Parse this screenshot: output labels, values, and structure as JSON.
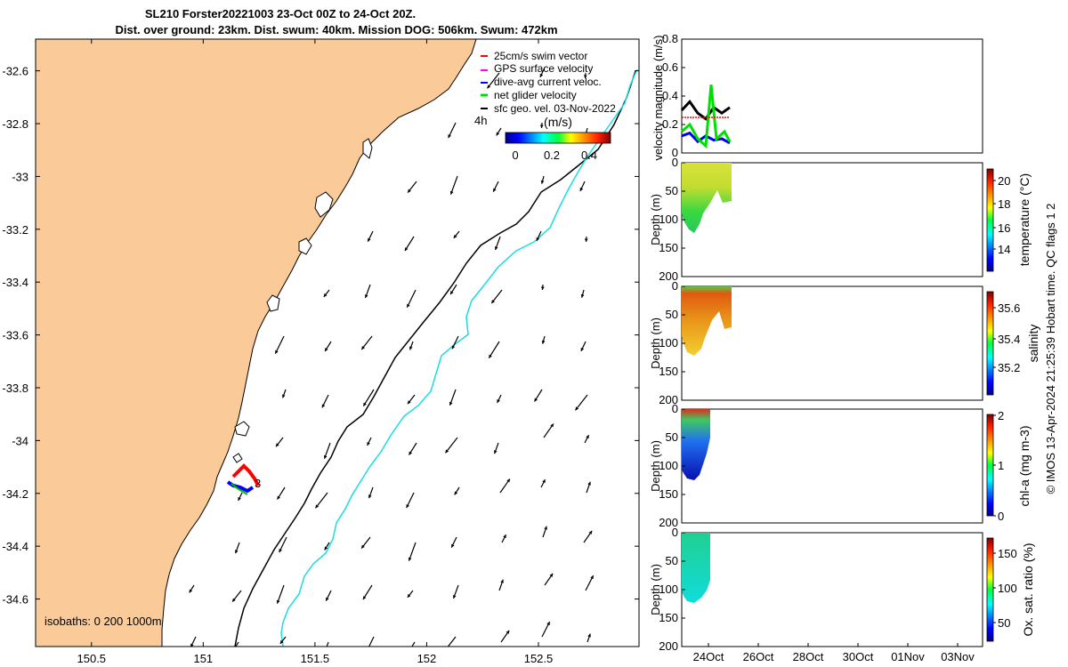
{
  "header": {
    "title_line1": "SL210 Forster20221003 23-Oct 00Z to 24-Oct 20Z.",
    "title_line2": "Dist. over ground: 23km. Dist. swum: 40km. Mission DOG: 506km. Swum: 472km"
  },
  "colors": {
    "land": "#facb98",
    "ocean": "#ffffff",
    "isobath_200": "#000000",
    "isobath_1000": "#19dede",
    "swim_vector": "#ff0000",
    "gps_velocity": "#ff00ff",
    "dive_avg_current": "#0000ff",
    "net_glider_velocity": "#00e000",
    "sfc_geo_vel": "#000000",
    "vmag_series_black": "#000000",
    "vmag_series_red": "#ff0000"
  },
  "map_legend": {
    "items": [
      "25cm/s swim vector",
      "GPS surface velocity",
      "dive-avg current veloc.",
      "net glider velocity",
      "sfc geo. vel. 03-Nov-2022"
    ],
    "time_label": "4h"
  },
  "map_colorbar": {
    "label": "(m/s)",
    "ticks": [
      "0",
      "0.2",
      "0.4"
    ]
  },
  "isobaths_label": "isobaths: 0   200  1000m",
  "track_label": "3",
  "footer_text": "© IMOS 13-Apr-2024 21:25:39 Hobart time. QC flags 1  2",
  "chart_data": [
    {
      "type": "map",
      "x_ticks": [
        "150.5",
        "151",
        "151.5",
        "152",
        "152.5"
      ],
      "y_ticks": [
        "-32.6",
        "-32.8",
        "-33",
        "-33.2",
        "-33.4",
        "-33.6",
        "-33.8",
        "-34",
        "-34.2",
        "-34.4",
        "-34.6"
      ],
      "xlim": [
        150.25,
        152.95
      ],
      "ylim": [
        -34.78,
        -32.48
      ]
    },
    {
      "type": "line",
      "ylabel": "velocity magnitude (m/s)",
      "ylim": [
        0,
        0.8
      ],
      "y_ticks": [
        "0",
        "0.2",
        "0.4",
        "0.6",
        "0.8"
      ],
      "series": [
        {
          "color": "black",
          "x": [
            0,
            0.3,
            0.6,
            0.9,
            1.2,
            1.5,
            1.8
          ],
          "values": [
            0.3,
            0.36,
            0.28,
            0.24,
            0.32,
            0.28,
            0.32
          ]
        },
        {
          "color": "blue",
          "x": [
            0,
            0.3,
            0.6,
            0.9,
            1.2,
            1.5,
            1.8
          ],
          "values": [
            0.12,
            0.14,
            0.08,
            0.12,
            0.09,
            0.1,
            0.07
          ]
        },
        {
          "color": "green",
          "x": [
            0,
            0.3,
            0.6,
            0.9,
            1.1,
            1.3,
            1.6,
            1.8
          ],
          "values": [
            0.15,
            0.2,
            0.1,
            0.05,
            0.48,
            0.1,
            0.15,
            0.08
          ]
        },
        {
          "color": "red",
          "x": [
            0,
            1.8
          ],
          "values": [
            0.25,
            0.25
          ]
        }
      ]
    },
    {
      "type": "heatmap",
      "ylabel": "Depth (m)",
      "colorbar_label": "temperature (°C)",
      "colorbar_ticks": [
        "14",
        "16",
        "18",
        "20"
      ],
      "ylim": [
        200,
        0
      ],
      "y_ticks": [
        "0",
        "50",
        "100",
        "150",
        "200"
      ]
    },
    {
      "type": "heatmap",
      "ylabel": "Depth (m)",
      "colorbar_label": "salinity",
      "colorbar_ticks": [
        "35.2",
        "35.4",
        "35.6"
      ],
      "ylim": [
        200,
        0
      ],
      "y_ticks": [
        "0",
        "50",
        "100",
        "150",
        "200"
      ]
    },
    {
      "type": "heatmap",
      "ylabel": "Depth (m)",
      "colorbar_label": "chl-a (mg m-3)",
      "colorbar_ticks": [
        "0",
        "1",
        "2"
      ],
      "ylim": [
        200,
        0
      ],
      "y_ticks": [
        "0",
        "50",
        "100",
        "150",
        "200"
      ]
    },
    {
      "type": "heatmap",
      "ylabel": "Depth (m)",
      "colorbar_label": "Ox. sat. ratio (%)",
      "colorbar_ticks": [
        "50",
        "100",
        "150"
      ],
      "ylim": [
        200,
        0
      ],
      "y_ticks": [
        "0",
        "50",
        "100",
        "150",
        "200"
      ],
      "x_ticks": [
        "24Oct",
        "26Oct",
        "28Oct",
        "30Oct",
        "01Nov",
        "03Nov"
      ]
    }
  ]
}
